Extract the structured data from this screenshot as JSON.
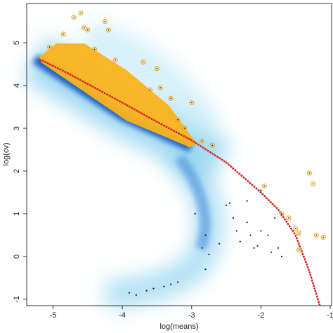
{
  "chart_data": {
    "type": "scatter",
    "x_label": "log(means)",
    "y_label": "log(cv)",
    "xlim": [
      -5.38,
      -0.98
    ],
    "ylim": [
      -1.15,
      5.92
    ],
    "xticks": [
      -5,
      -4,
      -3,
      -2,
      -1
    ],
    "yticks": [
      -1,
      0,
      1,
      2,
      3,
      4,
      5
    ],
    "series": [
      {
        "color": "#f5a623",
        "mode": "points",
        "x": [
          -4.6,
          -4.7,
          -4.5,
          -4.55,
          -4.2,
          -4.25,
          -4.85,
          -5.05,
          -4.4,
          -4.1,
          -3.7,
          -3.5,
          -3.45,
          -3.6,
          -3.3,
          -3.0,
          -2.85,
          -2.7,
          -1.95,
          -1.6,
          -1.7,
          -1.45,
          -1.3,
          -1.25,
          -1.2,
          -1.1,
          -1.5,
          -1.45,
          -3.2,
          -3.1
        ],
        "values": [
          5.7,
          5.6,
          5.3,
          5.35,
          5.3,
          5.5,
          5.2,
          4.9,
          4.85,
          4.6,
          4.55,
          4.4,
          3.95,
          3.9,
          3.7,
          3.6,
          2.7,
          2.6,
          1.65,
          0.9,
          1.0,
          0.55,
          1.95,
          1.7,
          0.5,
          0.45,
          0.65,
          0.15,
          3.2,
          3.0
        ]
      },
      {
        "color": "#1a1a2e",
        "mode": "points",
        "x": [
          -3.9,
          -3.8,
          -3.65,
          -3.55,
          -3.4,
          -3.3,
          -3.2,
          -2.95,
          -2.85,
          -2.8,
          -2.75,
          -2.8,
          -2.5,
          -2.45,
          -2.4,
          -2.35,
          -2.3,
          -2.2,
          -2.15,
          -2.1,
          -2.05,
          -2.0,
          -1.9,
          -1.85,
          -1.8,
          -1.75,
          -1.7,
          -2.0,
          -2.2,
          -2.6
        ],
        "values": [
          -0.85,
          -0.9,
          -0.8,
          -0.75,
          -0.7,
          -0.65,
          -0.6,
          1.0,
          0.2,
          -0.3,
          0.05,
          0.5,
          1.2,
          1.25,
          0.9,
          0.6,
          0.35,
          0.8,
          0.5,
          0.2,
          0.25,
          0.6,
          0.5,
          0.1,
          0.9,
          0.2,
          0.0,
          1.55,
          1.3,
          0.3
        ]
      },
      {
        "color": "#d62728",
        "mode": "line",
        "x": [
          -5.2,
          -4.8,
          -4.4,
          -4.0,
          -3.5,
          -3.0,
          -2.5,
          -2.0,
          -1.75,
          -1.5,
          -1.3,
          -1.15
        ],
        "values": [
          4.62,
          4.3,
          3.95,
          3.6,
          3.15,
          2.72,
          2.2,
          1.5,
          1.1,
          0.5,
          -0.35,
          -1.15
        ]
      }
    ]
  }
}
